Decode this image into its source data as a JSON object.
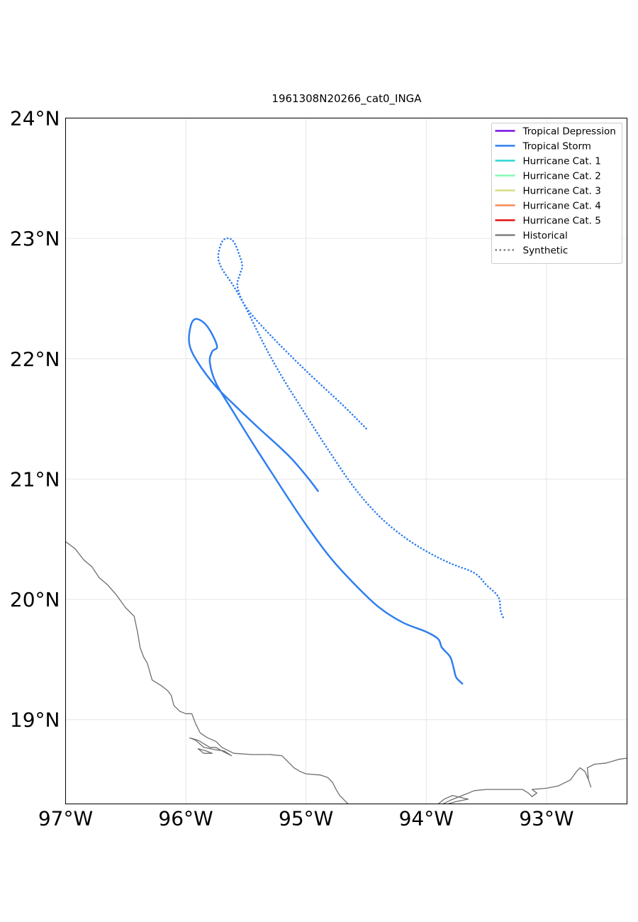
{
  "title": "1961308N20266_cat0_INGA",
  "chart_data": {
    "type": "map",
    "title": "1961308N20266_cat0_INGA",
    "xlim": [
      -97.0,
      -92.33
    ],
    "ylim": [
      18.3,
      24.0
    ],
    "x_ticks": [
      {
        "value": -97,
        "label": "97°W"
      },
      {
        "value": -96,
        "label": "96°W"
      },
      {
        "value": -95,
        "label": "95°W"
      },
      {
        "value": -94,
        "label": "94°W"
      },
      {
        "value": -93,
        "label": "93°W"
      }
    ],
    "y_ticks": [
      {
        "value": 24,
        "label": "24°N"
      },
      {
        "value": 23,
        "label": "23°N"
      },
      {
        "value": 22,
        "label": "22°N"
      },
      {
        "value": 21,
        "label": "21°N"
      },
      {
        "value": 20,
        "label": "20°N"
      },
      {
        "value": 19,
        "label": "19°N"
      }
    ],
    "grid": true,
    "legend_position": "top-right",
    "legend": [
      {
        "label": "Tropical Depression",
        "color": "#7b0fe0",
        "style": "solid"
      },
      {
        "label": "Tropical Storm",
        "color": "#2f7ff0",
        "style": "solid"
      },
      {
        "label": "Hurricane Cat. 1",
        "color": "#2fd5d5",
        "style": "solid"
      },
      {
        "label": "Hurricane Cat. 2",
        "color": "#85f8b5",
        "style": "solid"
      },
      {
        "label": "Hurricane Cat. 3",
        "color": "#d4dd80",
        "style": "solid"
      },
      {
        "label": "Hurricane Cat. 4",
        "color": "#f58a55",
        "style": "solid"
      },
      {
        "label": "Hurricane Cat. 5",
        "color": "#e31010",
        "style": "solid"
      },
      {
        "label": "Historical",
        "color": "#808080",
        "style": "solid"
      },
      {
        "label": "Synthetic",
        "color": "#808080",
        "style": "dotted"
      }
    ],
    "series": [
      {
        "category": "Tropical Storm",
        "kind": "historical",
        "points": [
          [
            -94.9,
            20.9
          ],
          [
            -95.0,
            21.03
          ],
          [
            -95.15,
            21.2
          ],
          [
            -95.4,
            21.43
          ],
          [
            -95.6,
            21.62
          ],
          [
            -95.75,
            21.77
          ],
          [
            -95.9,
            21.97
          ],
          [
            -95.97,
            22.12
          ],
          [
            -95.96,
            22.27
          ],
          [
            -95.92,
            22.33
          ],
          [
            -95.85,
            22.3
          ],
          [
            -95.79,
            22.22
          ],
          [
            -95.74,
            22.1
          ],
          [
            -95.78,
            22.06
          ],
          [
            -95.8,
            21.97
          ],
          [
            -95.75,
            21.8
          ],
          [
            -95.6,
            21.55
          ],
          [
            -95.4,
            21.23
          ],
          [
            -95.2,
            20.92
          ],
          [
            -95.0,
            20.62
          ],
          [
            -94.8,
            20.35
          ],
          [
            -94.6,
            20.13
          ],
          [
            -94.4,
            19.94
          ],
          [
            -94.2,
            19.81
          ],
          [
            -94.0,
            19.73
          ],
          [
            -93.9,
            19.67
          ],
          [
            -93.87,
            19.6
          ],
          [
            -93.8,
            19.52
          ],
          [
            -93.77,
            19.42
          ],
          [
            -93.75,
            19.35
          ],
          [
            -93.7,
            19.3
          ]
        ]
      },
      {
        "category": "Tropical Storm",
        "kind": "synthetic",
        "points": [
          [
            -94.5,
            21.42
          ],
          [
            -94.7,
            21.62
          ],
          [
            -95.0,
            21.9
          ],
          [
            -95.3,
            22.2
          ],
          [
            -95.5,
            22.43
          ],
          [
            -95.57,
            22.6
          ],
          [
            -95.55,
            22.7
          ],
          [
            -95.53,
            22.77
          ],
          [
            -95.55,
            22.85
          ],
          [
            -95.6,
            22.97
          ],
          [
            -95.65,
            23.0
          ],
          [
            -95.7,
            22.97
          ],
          [
            -95.73,
            22.85
          ],
          [
            -95.7,
            22.75
          ],
          [
            -95.6,
            22.6
          ],
          [
            -95.5,
            22.42
          ],
          [
            -95.35,
            22.12
          ],
          [
            -95.2,
            21.85
          ],
          [
            -95.0,
            21.53
          ],
          [
            -94.8,
            21.22
          ],
          [
            -94.6,
            20.93
          ],
          [
            -94.4,
            20.7
          ],
          [
            -94.2,
            20.53
          ],
          [
            -94.0,
            20.4
          ],
          [
            -93.8,
            20.3
          ],
          [
            -93.6,
            20.22
          ],
          [
            -93.5,
            20.12
          ],
          [
            -93.4,
            20.02
          ],
          [
            -93.38,
            19.9
          ],
          [
            -93.35,
            19.83
          ]
        ]
      }
    ]
  },
  "coastline": {
    "color": "#6e6e6e",
    "segments": [
      [
        [
          -97.0,
          20.48
        ],
        [
          -96.92,
          20.42
        ],
        [
          -96.85,
          20.33
        ],
        [
          -96.78,
          20.27
        ],
        [
          -96.72,
          20.18
        ],
        [
          -96.65,
          20.12
        ],
        [
          -96.58,
          20.04
        ],
        [
          -96.5,
          19.93
        ],
        [
          -96.43,
          19.86
        ],
        [
          -96.4,
          19.72
        ],
        [
          -96.38,
          19.6
        ],
        [
          -96.35,
          19.52
        ],
        [
          -96.32,
          19.47
        ],
        [
          -96.3,
          19.4
        ],
        [
          -96.28,
          19.33
        ],
        [
          -96.2,
          19.28
        ],
        [
          -96.15,
          19.24
        ],
        [
          -96.12,
          19.2
        ],
        [
          -96.1,
          19.12
        ],
        [
          -96.05,
          19.07
        ],
        [
          -96.0,
          19.05
        ],
        [
          -95.95,
          19.05
        ],
        [
          -95.92,
          18.97
        ],
        [
          -95.88,
          18.89
        ],
        [
          -95.82,
          18.85
        ],
        [
          -95.75,
          18.82
        ],
        [
          -95.7,
          18.77
        ],
        [
          -95.6,
          18.72
        ],
        [
          -95.45,
          18.71
        ],
        [
          -95.3,
          18.71
        ],
        [
          -95.2,
          18.7
        ],
        [
          -95.15,
          18.65
        ],
        [
          -95.1,
          18.6
        ],
        [
          -95.05,
          18.57
        ],
        [
          -95.0,
          18.55
        ],
        [
          -94.88,
          18.54
        ],
        [
          -94.82,
          18.52
        ],
        [
          -94.78,
          18.48
        ],
        [
          -94.75,
          18.42
        ],
        [
          -94.72,
          18.37
        ],
        [
          -94.68,
          18.33
        ],
        [
          -94.65,
          18.3
        ]
      ],
      [
        [
          -95.97,
          18.85
        ],
        [
          -95.9,
          18.83
        ],
        [
          -95.85,
          18.8
        ],
        [
          -95.8,
          18.77
        ],
        [
          -95.75,
          18.77
        ],
        [
          -95.68,
          18.73
        ],
        [
          -95.62,
          18.7
        ],
        [
          -95.68,
          18.74
        ],
        [
          -95.75,
          18.75
        ],
        [
          -95.85,
          18.77
        ],
        [
          -95.92,
          18.83
        ],
        [
          -95.97,
          18.85
        ]
      ],
      [
        [
          -95.9,
          18.76
        ],
        [
          -95.83,
          18.74
        ],
        [
          -95.78,
          18.72
        ],
        [
          -95.85,
          18.72
        ],
        [
          -95.9,
          18.76
        ]
      ],
      [
        [
          -93.86,
          18.3
        ],
        [
          -93.8,
          18.33
        ],
        [
          -93.7,
          18.37
        ],
        [
          -93.6,
          18.41
        ],
        [
          -93.5,
          18.42
        ],
        [
          -93.35,
          18.42
        ],
        [
          -93.2,
          18.42
        ],
        [
          -93.15,
          18.39
        ],
        [
          -93.12,
          18.36
        ],
        [
          -93.08,
          18.39
        ],
        [
          -93.12,
          18.42
        ],
        [
          -93.0,
          18.43
        ],
        [
          -92.9,
          18.45
        ],
        [
          -92.8,
          18.5
        ],
        [
          -92.75,
          18.57
        ],
        [
          -92.72,
          18.6
        ],
        [
          -92.68,
          18.57
        ],
        [
          -92.65,
          18.5
        ],
        [
          -92.63,
          18.44
        ],
        [
          -92.65,
          18.5
        ],
        [
          -92.66,
          18.6
        ],
        [
          -92.6,
          18.63
        ],
        [
          -92.5,
          18.64
        ],
        [
          -92.4,
          18.67
        ],
        [
          -92.33,
          18.68
        ]
      ],
      [
        [
          -93.9,
          18.3
        ],
        [
          -93.85,
          18.34
        ],
        [
          -93.78,
          18.37
        ],
        [
          -93.7,
          18.35
        ],
        [
          -93.65,
          18.34
        ],
        [
          -93.75,
          18.32
        ],
        [
          -93.82,
          18.3
        ]
      ]
    ]
  }
}
